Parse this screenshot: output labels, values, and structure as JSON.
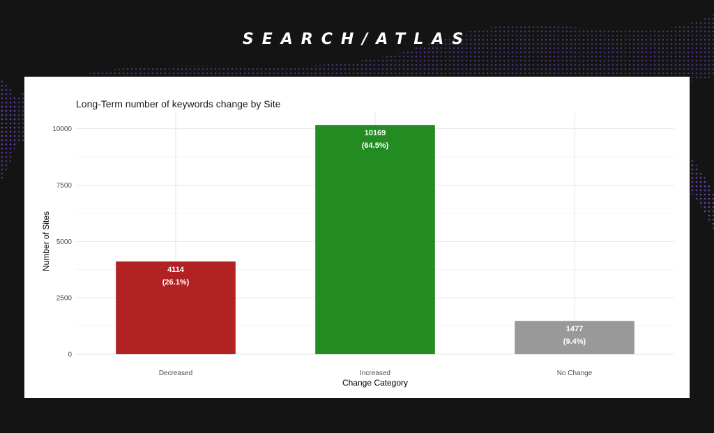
{
  "brand": {
    "logo_text": "SEARCH/ATLAS"
  },
  "chart_data": {
    "type": "bar",
    "title": "Long-Term number of keywords change by Site",
    "xlabel": "Change Category",
    "ylabel": "Number of Sites",
    "categories": [
      "Decreased",
      "Increased",
      "No Change"
    ],
    "values": [
      4114,
      10169,
      1477
    ],
    "value_labels": [
      "4114",
      "10169",
      "1477"
    ],
    "percent_labels": [
      "(26.1%)",
      "(64.5%)",
      "(9.4%)"
    ],
    "colors": [
      "#b22222",
      "#228b22",
      "#999999"
    ],
    "yticks": [
      0,
      2500,
      5000,
      7500,
      10000
    ],
    "ylim": [
      0,
      10700
    ],
    "grid": true,
    "legend": "none"
  }
}
